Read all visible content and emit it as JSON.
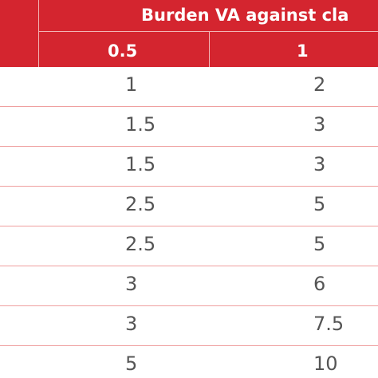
{
  "table": {
    "group_header": "Burden VA against cla",
    "column_headers": [
      "0.5",
      "1"
    ],
    "rows": [
      [
        "1",
        "2"
      ],
      [
        "1.5",
        "3"
      ],
      [
        "1.5",
        "3"
      ],
      [
        "2.5",
        "5"
      ],
      [
        "2.5",
        "5"
      ],
      [
        "3",
        "6"
      ],
      [
        "3",
        "7.5"
      ],
      [
        "5",
        "10"
      ]
    ]
  },
  "colors": {
    "header_background": "#d4252f",
    "header_text": "#ffffff",
    "row_divider": "#ef9f9f",
    "cell_text": "#555555"
  }
}
